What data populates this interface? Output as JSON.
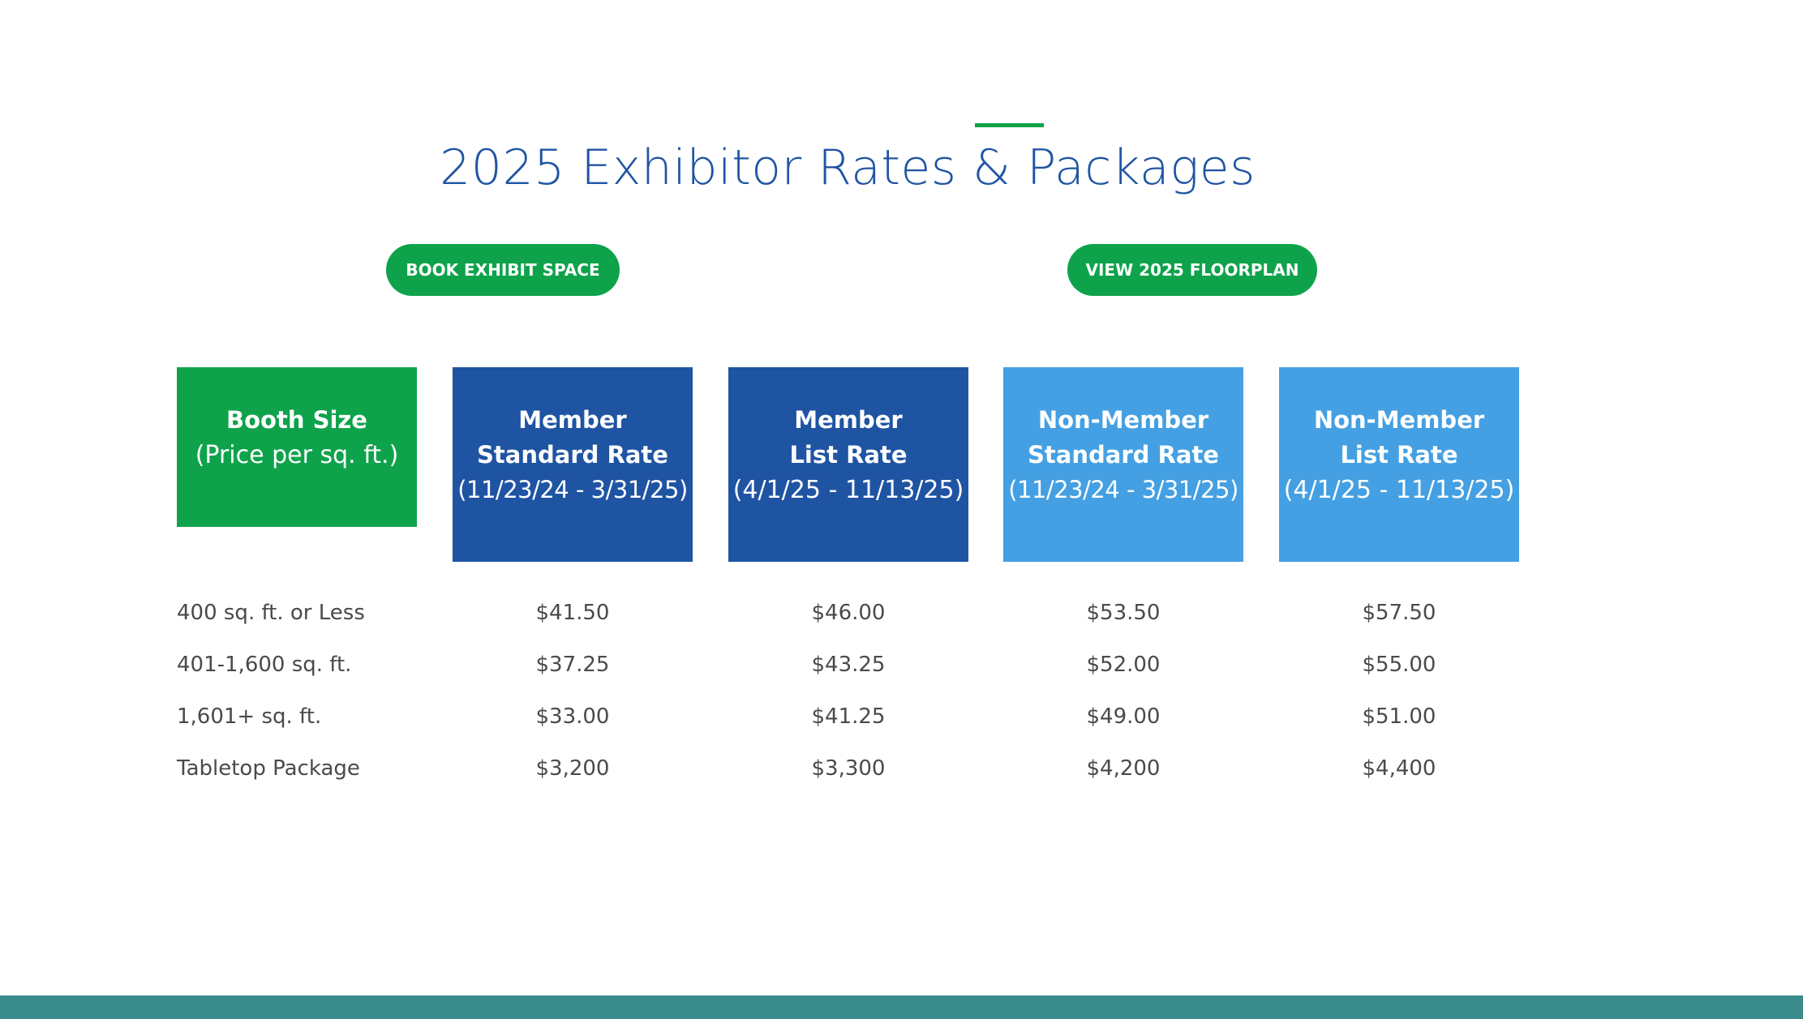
{
  "section": {
    "title": "2025 Exhibitor Rates & Packages"
  },
  "buttons": {
    "book_label": "BOOK EXHIBIT SPACE",
    "floorplan_label": "VIEW 2025 FLOORPLAN"
  },
  "rates_table": {
    "headers": [
      {
        "line1": "Booth Size",
        "line2": "(Price per sq. ft.)",
        "color": "#0ea34b"
      },
      {
        "line1": "Member",
        "line2": "Standard Rate",
        "line3": "(11/23/24 - 3/31/25)",
        "color": "#1f54a3"
      },
      {
        "line1": "Member",
        "line2": "List Rate",
        "line3": "(4/1/25 - 11/13/25)",
        "color": "#1f54a3"
      },
      {
        "line1": "Non-Member",
        "line2": "Standard Rate",
        "line3": "(11/23/24 - 3/31/25)",
        "color": "#44a0e2"
      },
      {
        "line1": "Non-Member",
        "line2": "List Rate",
        "line3": "(4/1/25 - 11/13/25)",
        "color": "#44a0e2"
      }
    ],
    "rows": [
      {
        "label": "400 sq. ft. or Less",
        "values": [
          "$41.50",
          "$46.00",
          "$53.50",
          "$57.50"
        ]
      },
      {
        "label": "401-1,600 sq. ft.",
        "values": [
          "$37.25",
          "$43.25",
          "$52.00",
          "$55.00"
        ]
      },
      {
        "label": "1,601+ sq. ft.",
        "values": [
          "$33.00",
          "$41.25",
          "$49.00",
          "$51.00"
        ]
      },
      {
        "label": "Tabletop Package",
        "values": [
          "$3,200",
          "$3,300",
          "$4,200",
          "$4,400"
        ]
      }
    ]
  },
  "colors": {
    "accent_green": "#0ea34b",
    "member_blue": "#1f54a3",
    "nonmember_blue": "#44a0e2",
    "footer_teal": "#388a8b",
    "title_blue": "#1f54a3"
  }
}
